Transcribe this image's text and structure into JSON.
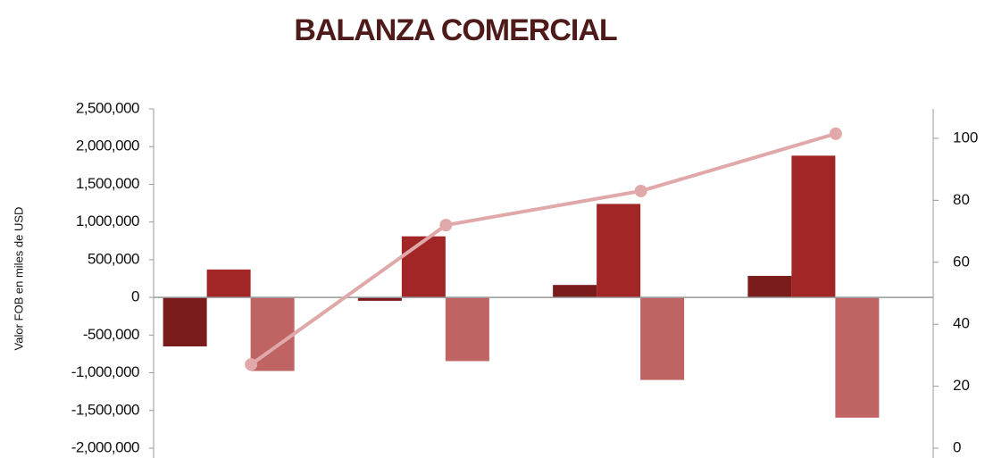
{
  "chart_data": {
    "type": "bar",
    "title": "BALANZA COMERCIAL",
    "y_label": "Valor FOB en miles de USD",
    "categories": [
      null,
      null,
      null,
      null
    ],
    "series": [
      {
        "color": "#7a1c1c",
        "values": [
          -650000,
          -45000,
          165000,
          285000
        ]
      },
      {
        "color": "#a32626",
        "values": [
          370000,
          810000,
          1240000,
          1880000
        ]
      },
      {
        "color": "#bf6363",
        "values": [
          -976000,
          -845000,
          -1095000,
          -1595000
        ]
      },
      {
        "type": "line",
        "axis": "y2",
        "color": "#e0a8a8",
        "values": [
          27,
          72,
          83,
          101.5
        ]
      }
    ],
    "ylim": [
      -2000000,
      2500000
    ],
    "yticks": [
      {
        "value": 2500000,
        "label": "2,500,000"
      },
      {
        "value": 2000000,
        "label": "2,000,000"
      },
      {
        "value": 1500000,
        "label": "1,500,000"
      },
      {
        "value": 1000000,
        "label": "1,000,000"
      },
      {
        "value": 500000,
        "label": "500,000"
      },
      0,
      {
        "value": -500000,
        "label": "-500,000"
      },
      {
        "value": -1000000,
        "label": "-1,000,000"
      },
      {
        "value": -1500000,
        "label": "-1,500,000"
      },
      {
        "value": -2000000,
        "label": "-2,000,000"
      }
    ],
    "y2lim": [
      0,
      109.5
    ],
    "y2ticks": [
      0,
      20,
      40,
      60,
      80,
      100
    ]
  }
}
